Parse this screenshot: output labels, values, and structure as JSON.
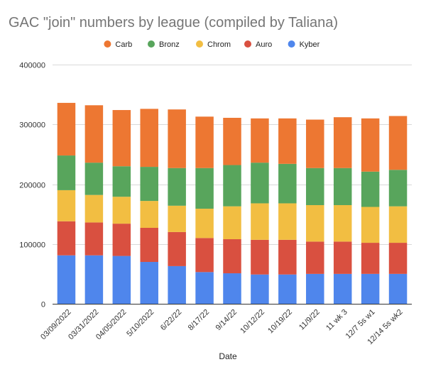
{
  "chart_data": {
    "type": "bar",
    "stacked": true,
    "title": "GAC \"join\" numbers by league (compiled by Taliana)",
    "xlabel": "Date",
    "ylabel": "",
    "ylim": [
      0,
      400000
    ],
    "yticks": [
      0,
      100000,
      200000,
      300000,
      400000
    ],
    "ytick_labels": [
      "0",
      "100000",
      "200000",
      "300000",
      "400000"
    ],
    "grid": true,
    "legend_position": "top",
    "categories": [
      "03/09/2022",
      "03/31/2022",
      "04/05/2022",
      "5/10/2022",
      "6/22/22",
      "8/17/22",
      "9/14/22",
      "10/12/22",
      "10/19/22",
      "11/9/22",
      "11 wk 3",
      "12/7 5s w1",
      "12/14 5s wk2"
    ],
    "series": [
      {
        "name": "Kyber",
        "color": "#4F86EC",
        "values": [
          81000,
          81000,
          80000,
          70000,
          63000,
          53000,
          51000,
          49000,
          49000,
          50000,
          50000,
          50000,
          50000
        ]
      },
      {
        "name": "Auro",
        "color": "#D95040",
        "values": [
          57000,
          55000,
          54000,
          57000,
          57000,
          57000,
          57000,
          58000,
          58000,
          54000,
          54000,
          52000,
          52000
        ]
      },
      {
        "name": "Chrom",
        "color": "#F2BE42",
        "values": [
          52000,
          46000,
          45000,
          45000,
          44000,
          49000,
          55000,
          61000,
          61000,
          61000,
          61000,
          60000,
          61000
        ]
      },
      {
        "name": "Bronz",
        "color": "#58A55C",
        "values": [
          58000,
          54000,
          51000,
          57000,
          63000,
          68000,
          69000,
          68000,
          66000,
          62000,
          62000,
          59000,
          61000
        ]
      },
      {
        "name": "Carb",
        "color": "#ED7732",
        "values": [
          88000,
          96000,
          94000,
          97000,
          98000,
          86000,
          79000,
          74000,
          76000,
          81000,
          85000,
          89000,
          90000
        ]
      }
    ],
    "legend_order": [
      "Carb",
      "Bronz",
      "Chrom",
      "Auro",
      "Kyber"
    ]
  }
}
